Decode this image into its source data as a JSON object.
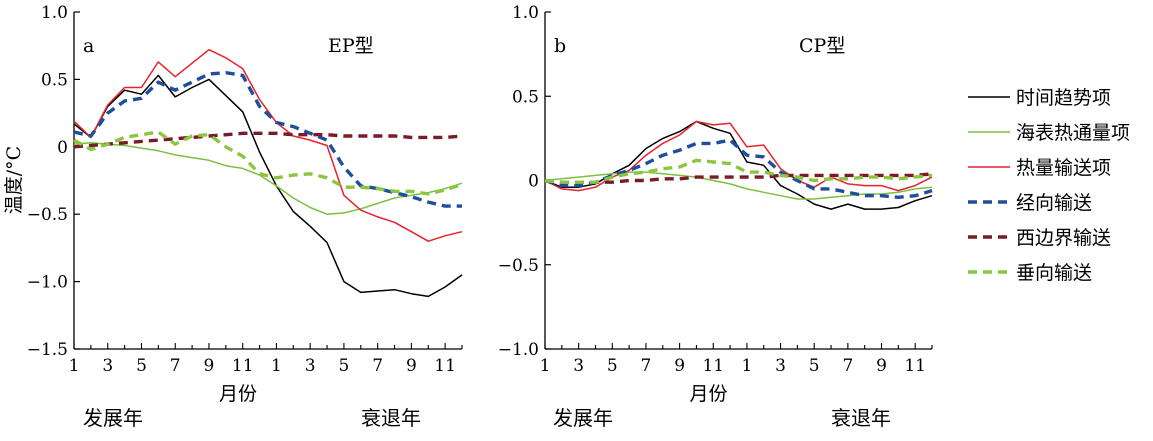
{
  "ylabel": "温度/°C",
  "xlabel": "月份",
  "phase_labels": [
    "发展年",
    "衰退年"
  ],
  "legend": [
    {
      "key": "trend",
      "label": "时间趋势项",
      "color": "#000000",
      "dash": false
    },
    {
      "key": "shf",
      "label": "海表热通量项",
      "color": "#7ac142",
      "dash": false
    },
    {
      "key": "heat",
      "label": "热量输送项",
      "color": "#e8222a",
      "dash": false
    },
    {
      "key": "merid",
      "label": "经向输送",
      "color": "#1f4e9c",
      "dash": true
    },
    {
      "key": "west",
      "label": "西边界输送",
      "color": "#7a1c28",
      "dash": true
    },
    {
      "key": "vert",
      "label": "垂向输送",
      "color": "#8cc63f",
      "dash": true
    }
  ],
  "chart_data": [
    {
      "type": "line",
      "panel": "a",
      "title": "EP型",
      "xlabel": "月份",
      "ylabel": "温度/°C",
      "x": [
        1,
        2,
        3,
        4,
        5,
        6,
        7,
        8,
        9,
        10,
        11,
        12,
        13,
        14,
        15,
        16,
        17,
        18,
        19,
        20,
        21,
        22,
        23,
        24
      ],
      "xticks": [
        "1",
        "3",
        "5",
        "7",
        "9",
        "11",
        "1",
        "3",
        "5",
        "7",
        "9",
        "11"
      ],
      "yticks": [
        "1.0",
        "0.5",
        "0",
        "−0.5",
        "−1.0",
        "−1.5"
      ],
      "ylim": [
        -1.5,
        1.0
      ],
      "series": [
        {
          "key": "trend",
          "name": "时间趋势项",
          "values": [
            0.17,
            0.07,
            0.3,
            0.42,
            0.39,
            0.53,
            0.37,
            0.44,
            0.5,
            0.38,
            0.26,
            -0.04,
            -0.29,
            -0.48,
            -0.59,
            -0.71,
            -1.0,
            -1.08,
            -1.07,
            -1.06,
            -1.09,
            -1.11,
            -1.04,
            -0.95
          ]
        },
        {
          "key": "shf",
          "name": "海表热通量项",
          "values": [
            0.02,
            0.03,
            0.02,
            0.01,
            -0.01,
            -0.03,
            -0.06,
            -0.08,
            -0.1,
            -0.14,
            -0.16,
            -0.21,
            -0.29,
            -0.38,
            -0.45,
            -0.5,
            -0.49,
            -0.46,
            -0.42,
            -0.38,
            -0.36,
            -0.34,
            -0.31,
            -0.27
          ]
        },
        {
          "key": "heat",
          "name": "热量输送项",
          "values": [
            0.19,
            0.07,
            0.31,
            0.44,
            0.44,
            0.63,
            0.52,
            0.62,
            0.72,
            0.66,
            0.58,
            0.35,
            0.18,
            0.08,
            0.05,
            0.01,
            -0.36,
            -0.47,
            -0.52,
            -0.56,
            -0.63,
            -0.7,
            -0.66,
            -0.63
          ]
        },
        {
          "key": "merid",
          "name": "经向输送",
          "values": [
            0.11,
            0.08,
            0.25,
            0.34,
            0.36,
            0.48,
            0.42,
            0.48,
            0.54,
            0.55,
            0.53,
            0.3,
            0.18,
            0.15,
            0.1,
            0.05,
            -0.15,
            -0.29,
            -0.31,
            -0.34,
            -0.37,
            -0.41,
            -0.44,
            -0.44
          ]
        },
        {
          "key": "west",
          "name": "西边界输送",
          "values": [
            0.0,
            0.01,
            0.02,
            0.03,
            0.04,
            0.05,
            0.06,
            0.07,
            0.08,
            0.09,
            0.1,
            0.1,
            0.1,
            0.09,
            0.09,
            0.09,
            0.08,
            0.08,
            0.08,
            0.08,
            0.07,
            0.07,
            0.07,
            0.08
          ]
        },
        {
          "key": "vert",
          "name": "垂向输送",
          "values": [
            0.05,
            -0.02,
            0.02,
            0.07,
            0.09,
            0.11,
            0.02,
            0.08,
            0.09,
            0.0,
            -0.07,
            -0.2,
            -0.23,
            -0.21,
            -0.2,
            -0.23,
            -0.3,
            -0.3,
            -0.31,
            -0.33,
            -0.33,
            -0.35,
            -0.32,
            -0.28
          ]
        }
      ]
    },
    {
      "type": "line",
      "panel": "b",
      "title": "CP型",
      "xlabel": "月份",
      "ylabel": "",
      "x": [
        1,
        2,
        3,
        4,
        5,
        6,
        7,
        8,
        9,
        10,
        11,
        12,
        13,
        14,
        15,
        16,
        17,
        18,
        19,
        20,
        21,
        22,
        23,
        24
      ],
      "xticks": [
        "1",
        "3",
        "5",
        "7",
        "9",
        "11",
        "1",
        "3",
        "5",
        "7",
        "9",
        "11"
      ],
      "yticks": [
        "1.0",
        "0.5",
        "0",
        "−0.5",
        "−1.0"
      ],
      "ylim": [
        -1.0,
        1.0
      ],
      "series": [
        {
          "key": "trend",
          "name": "时间趋势项",
          "values": [
            0.0,
            -0.04,
            -0.04,
            -0.02,
            0.04,
            0.09,
            0.19,
            0.25,
            0.29,
            0.35,
            0.31,
            0.28,
            0.11,
            0.09,
            -0.03,
            -0.08,
            -0.14,
            -0.17,
            -0.14,
            -0.17,
            -0.17,
            -0.16,
            -0.12,
            -0.09
          ]
        },
        {
          "key": "shf",
          "name": "海表热通量项",
          "values": [
            0.0,
            0.01,
            0.02,
            0.03,
            0.04,
            0.05,
            0.05,
            0.04,
            0.03,
            0.02,
            0.0,
            -0.02,
            -0.05,
            -0.07,
            -0.09,
            -0.11,
            -0.11,
            -0.1,
            -0.09,
            -0.08,
            -0.08,
            -0.07,
            -0.05,
            -0.04
          ]
        },
        {
          "key": "heat",
          "name": "热量输送项",
          "values": [
            0.0,
            -0.05,
            -0.06,
            -0.04,
            0.02,
            0.06,
            0.15,
            0.22,
            0.27,
            0.35,
            0.33,
            0.34,
            0.2,
            0.21,
            0.07,
            0.0,
            -0.04,
            0.02,
            -0.02,
            -0.03,
            -0.03,
            -0.06,
            -0.03,
            0.02
          ]
        },
        {
          "key": "merid",
          "name": "经向输送",
          "values": [
            0.0,
            -0.03,
            -0.03,
            -0.01,
            0.03,
            0.06,
            0.1,
            0.15,
            0.18,
            0.22,
            0.22,
            0.24,
            0.15,
            0.14,
            0.05,
            0.0,
            -0.05,
            -0.05,
            -0.07,
            -0.09,
            -0.09,
            -0.1,
            -0.09,
            -0.06
          ]
        },
        {
          "key": "west",
          "name": "西边界输送",
          "values": [
            0.0,
            -0.01,
            -0.01,
            -0.01,
            -0.01,
            0.0,
            0.0,
            0.01,
            0.01,
            0.02,
            0.02,
            0.02,
            0.02,
            0.02,
            0.03,
            0.03,
            0.03,
            0.03,
            0.03,
            0.03,
            0.03,
            0.03,
            0.03,
            0.04
          ]
        },
        {
          "key": "vert",
          "name": "垂向输送",
          "values": [
            0.0,
            -0.01,
            -0.01,
            -0.01,
            0.02,
            0.04,
            0.05,
            0.07,
            0.08,
            0.12,
            0.11,
            0.1,
            0.05,
            0.05,
            0.03,
            0.02,
            0.0,
            0.01,
            0.01,
            0.02,
            0.02,
            0.01,
            0.02,
            0.03
          ]
        }
      ]
    }
  ]
}
